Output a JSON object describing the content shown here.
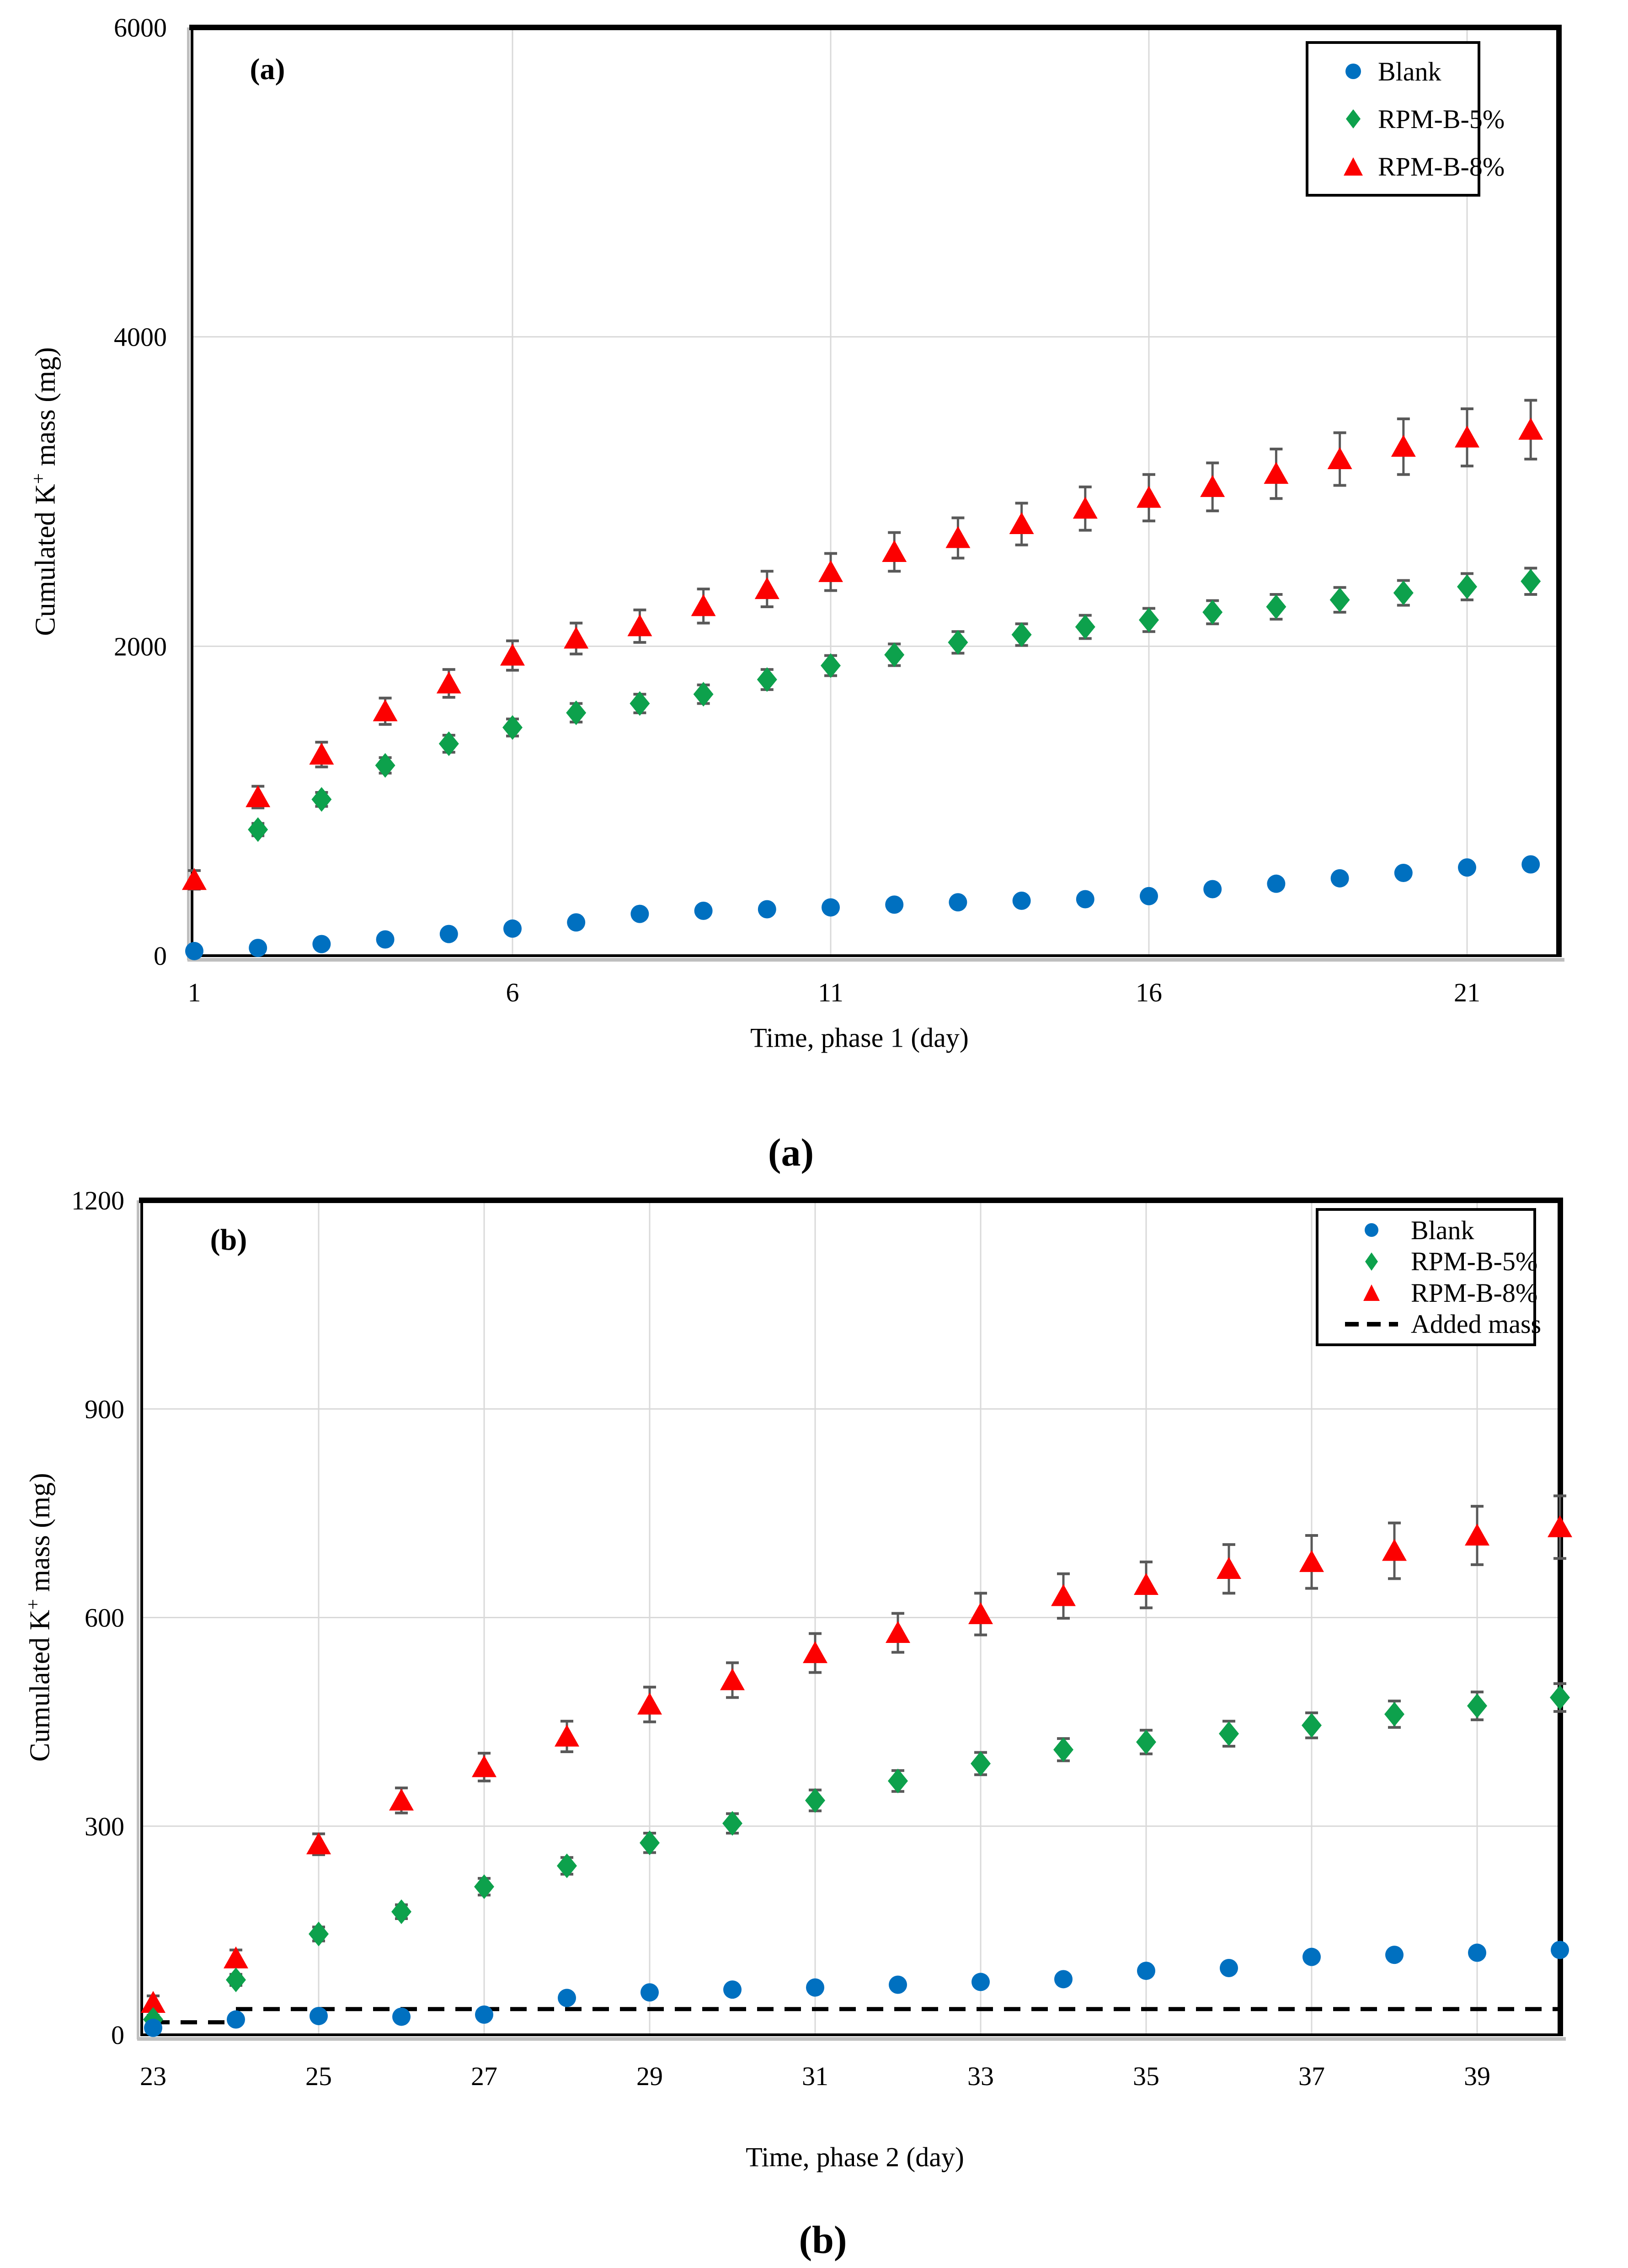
{
  "page": {
    "background": "#ffffff"
  },
  "colors": {
    "blank": "#0070C0",
    "rpm5": "#0DA14C",
    "rpm8": "#FC0000",
    "error_bar": "#595959",
    "grid": "#D9D9D9",
    "axis": "#000000",
    "axis_shadow": "#BFBFBF",
    "added_mass_line": "#000000"
  },
  "captions": {
    "a": "(a)",
    "b": "(b)"
  },
  "chart_data": [
    {
      "id": "a",
      "type": "scatter",
      "panel_label": "(a)",
      "title": "",
      "xlabel": "Time,  phase 1 (day)",
      "ylabel": "Cumulated K+ mass (mg)",
      "ylabel_parts": [
        "Cumulated  K",
        "+",
        "  mass (mg)"
      ],
      "xlim": [
        1,
        22.45
      ],
      "ylim": [
        0,
        6000
      ],
      "xticks": [
        1,
        6,
        11,
        16,
        21
      ],
      "yticks": [
        0,
        2000,
        4000,
        6000
      ],
      "grid_x": [
        6,
        11,
        16,
        21
      ],
      "grid_y": [
        2000,
        4000
      ],
      "grid_on": true,
      "legend_position": "top-right",
      "legend": [
        {
          "label": "Blank",
          "marker": "circle",
          "color_key": "blank"
        },
        {
          "label": "RPM-B-5%",
          "marker": "diamond",
          "color_key": "rpm5"
        },
        {
          "label": "RPM-B-8%",
          "marker": "triangle",
          "color_key": "rpm8"
        }
      ],
      "series": [
        {
          "name": "RPM-B-8%",
          "marker": "triangle",
          "color_key": "rpm8",
          "x": [
            1,
            2,
            3,
            4,
            5,
            6,
            7,
            8,
            9,
            10,
            11,
            12,
            13,
            14,
            15,
            16,
            17,
            18,
            19,
            20,
            21,
            22
          ],
          "y": [
            490,
            1025,
            1300,
            1580,
            1760,
            1940,
            2050,
            2130,
            2260,
            2370,
            2480,
            2610,
            2700,
            2790,
            2890,
            2960,
            3030,
            3115,
            3210,
            3290,
            3350,
            3400
          ],
          "err": [
            60,
            70,
            80,
            85,
            90,
            95,
            100,
            105,
            110,
            115,
            120,
            125,
            130,
            135,
            140,
            150,
            155,
            160,
            170,
            180,
            185,
            190
          ]
        },
        {
          "name": "RPM-B-5%",
          "marker": "diamond",
          "color_key": "rpm5",
          "x": [
            2,
            3,
            4,
            5,
            6,
            7,
            8,
            9,
            10,
            11,
            12,
            13,
            14,
            15,
            16,
            17,
            18,
            19,
            20,
            21,
            22
          ],
          "y": [
            815,
            1010,
            1230,
            1370,
            1475,
            1570,
            1630,
            1690,
            1785,
            1875,
            1945,
            2025,
            2075,
            2125,
            2170,
            2220,
            2255,
            2300,
            2345,
            2385,
            2420
          ],
          "err": [
            40,
            45,
            50,
            55,
            55,
            60,
            60,
            60,
            65,
            65,
            70,
            70,
            70,
            75,
            75,
            75,
            80,
            80,
            80,
            85,
            85
          ]
        },
        {
          "name": "Blank",
          "marker": "circle",
          "color_key": "blank",
          "x": [
            1,
            2,
            3,
            4,
            5,
            6,
            7,
            8,
            9,
            10,
            11,
            12,
            13,
            14,
            15,
            16,
            17,
            18,
            19,
            20,
            21,
            22
          ],
          "y": [
            30,
            50,
            75,
            105,
            140,
            175,
            215,
            270,
            290,
            300,
            312,
            330,
            345,
            355,
            365,
            385,
            430,
            465,
            500,
            535,
            570,
            590
          ],
          "err": null
        }
      ]
    },
    {
      "id": "b",
      "type": "scatter",
      "panel_label": "(b)",
      "title": "",
      "xlabel": "Time,  phase 2 (day)",
      "ylabel": "Cumulated K+ mass (mg)",
      "ylabel_parts": [
        "Cumulated  K",
        "+",
        " mass (mg)"
      ],
      "xlim": [
        23,
        40.3
      ],
      "ylim": [
        0,
        1200
      ],
      "xticks": [
        23,
        25,
        27,
        29,
        31,
        33,
        35,
        37,
        39
      ],
      "yticks": [
        0,
        300,
        600,
        900,
        1200
      ],
      "grid_x": [
        25,
        27,
        29,
        31,
        33,
        35,
        37,
        39
      ],
      "grid_y": [
        300,
        600,
        900
      ],
      "grid_on": true,
      "legend_position": "top-right",
      "legend": [
        {
          "label": "Blank",
          "marker": "circle",
          "color_key": "blank"
        },
        {
          "label": "RPM-B-5%",
          "marker": "diamond",
          "color_key": "rpm5"
        },
        {
          "label": "RPM-B-8%",
          "marker": "triangle",
          "color_key": "rpm8"
        },
        {
          "label": "Added mass",
          "marker": "dash",
          "color_key": "added_mass_line"
        }
      ],
      "added_mass": {
        "label": "Added mass",
        "segments": [
          [
            [
              23,
              18
            ],
            [
              23.9,
              18
            ]
          ],
          [
            [
              24,
              37
            ],
            [
              40,
              37
            ]
          ]
        ]
      },
      "series": [
        {
          "name": "RPM-B-8%",
          "marker": "triangle",
          "color_key": "rpm8",
          "x": [
            23,
            24,
            25,
            26,
            27,
            28,
            29,
            30,
            31,
            32,
            33,
            34,
            35,
            36,
            37,
            38,
            39,
            40
          ],
          "y": [
            46,
            110,
            274,
            337,
            385,
            429,
            475,
            510,
            549,
            578,
            605,
            631,
            647,
            670,
            680,
            696,
            718,
            730
          ],
          "err": [
            10,
            12,
            15,
            18,
            20,
            22,
            25,
            25,
            28,
            28,
            30,
            32,
            33,
            35,
            38,
            40,
            42,
            45
          ]
        },
        {
          "name": "RPM-B-5%",
          "marker": "diamond",
          "color_key": "rpm5",
          "x": [
            23,
            24,
            25,
            26,
            27,
            28,
            29,
            30,
            31,
            32,
            33,
            34,
            35,
            36,
            37,
            38,
            39,
            40
          ],
          "y": [
            22,
            79,
            145,
            177,
            213,
            243,
            276,
            304,
            337,
            365,
            390,
            410,
            421,
            433,
            445,
            461,
            473,
            485
          ],
          "err": [
            6,
            8,
            10,
            10,
            12,
            12,
            14,
            14,
            15,
            15,
            16,
            16,
            17,
            18,
            18,
            19,
            20,
            20
          ]
        },
        {
          "name": "Blank",
          "marker": "circle",
          "color_key": "blank",
          "x": [
            23,
            24,
            25,
            26,
            27,
            28,
            29,
            30,
            31,
            32,
            33,
            34,
            35,
            36,
            37,
            38,
            39,
            40
          ],
          "y": [
            10,
            22,
            27,
            26,
            29,
            53,
            61,
            65,
            68,
            72,
            76,
            80,
            92,
            96,
            112,
            115,
            118,
            122
          ],
          "err": null
        }
      ]
    }
  ]
}
